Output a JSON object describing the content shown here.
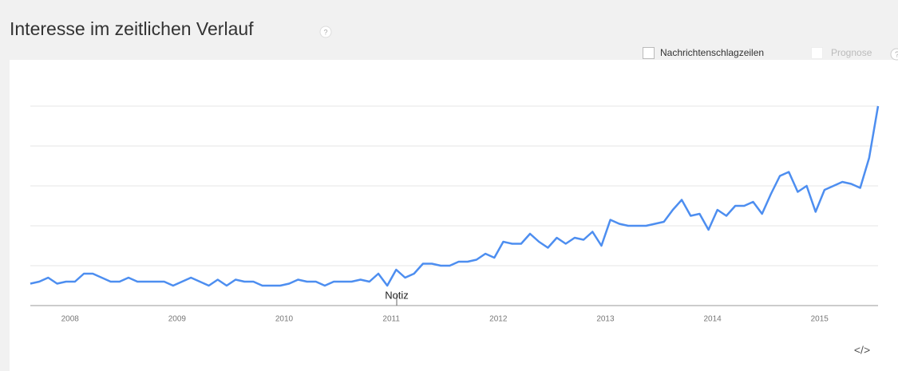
{
  "header": {
    "title": "Interesse im zeitlichen Verlauf",
    "help": "?"
  },
  "options": [
    {
      "label": "Nachrichtenschlagzeilen"
    },
    {
      "label": "Prognose",
      "help": "?"
    }
  ],
  "embed": "</>",
  "chart_data": {
    "type": "line",
    "annotation": "Notiz",
    "categories": [
      null,
      null,
      null,
      null,
      "2008",
      null,
      null,
      null,
      null,
      null,
      null,
      null,
      null,
      null,
      null,
      null,
      "2009",
      null,
      null,
      null,
      null,
      null,
      null,
      null,
      null,
      null,
      null,
      null,
      "2010",
      null,
      null,
      null,
      null,
      null,
      null,
      null,
      null,
      null,
      null,
      null,
      "2011",
      null,
      null,
      null,
      null,
      null,
      null,
      null,
      null,
      null,
      null,
      null,
      "2012",
      null,
      null,
      null,
      null,
      null,
      null,
      null,
      null,
      null,
      null,
      null,
      "2013",
      null,
      null,
      null,
      null,
      null,
      null,
      null,
      null,
      null,
      null,
      null,
      "2014",
      null,
      null,
      null,
      null,
      null,
      null,
      null,
      null,
      null,
      null,
      null,
      "2015",
      null,
      null,
      null,
      null,
      null,
      null,
      null
    ],
    "series": [
      {
        "color": "#4d8ef0",
        "values": [
          11,
          12,
          14,
          11,
          12,
          12,
          16,
          16,
          14,
          12,
          12,
          14,
          12,
          12,
          12,
          12,
          10,
          12,
          14,
          12,
          10,
          13,
          10,
          13,
          12,
          12,
          10,
          10,
          10,
          11,
          13,
          12,
          12,
          10,
          12,
          12,
          12,
          13,
          12,
          16,
          10,
          18,
          14,
          16,
          21,
          21,
          20,
          20,
          22,
          22,
          23,
          26,
          24,
          32,
          31,
          31,
          36,
          32,
          29,
          34,
          31,
          34,
          33,
          37,
          30,
          43,
          41,
          40,
          40,
          40,
          41,
          42,
          48,
          53,
          45,
          46,
          38,
          48,
          45,
          50,
          50,
          52,
          46,
          56,
          65,
          67,
          57,
          60,
          47,
          58,
          60,
          62,
          61,
          59,
          74,
          100
        ]
      }
    ],
    "ylim": [
      0,
      100
    ],
    "yticks": [
      0,
      20,
      40,
      60,
      80,
      100
    ],
    "grid": true
  }
}
